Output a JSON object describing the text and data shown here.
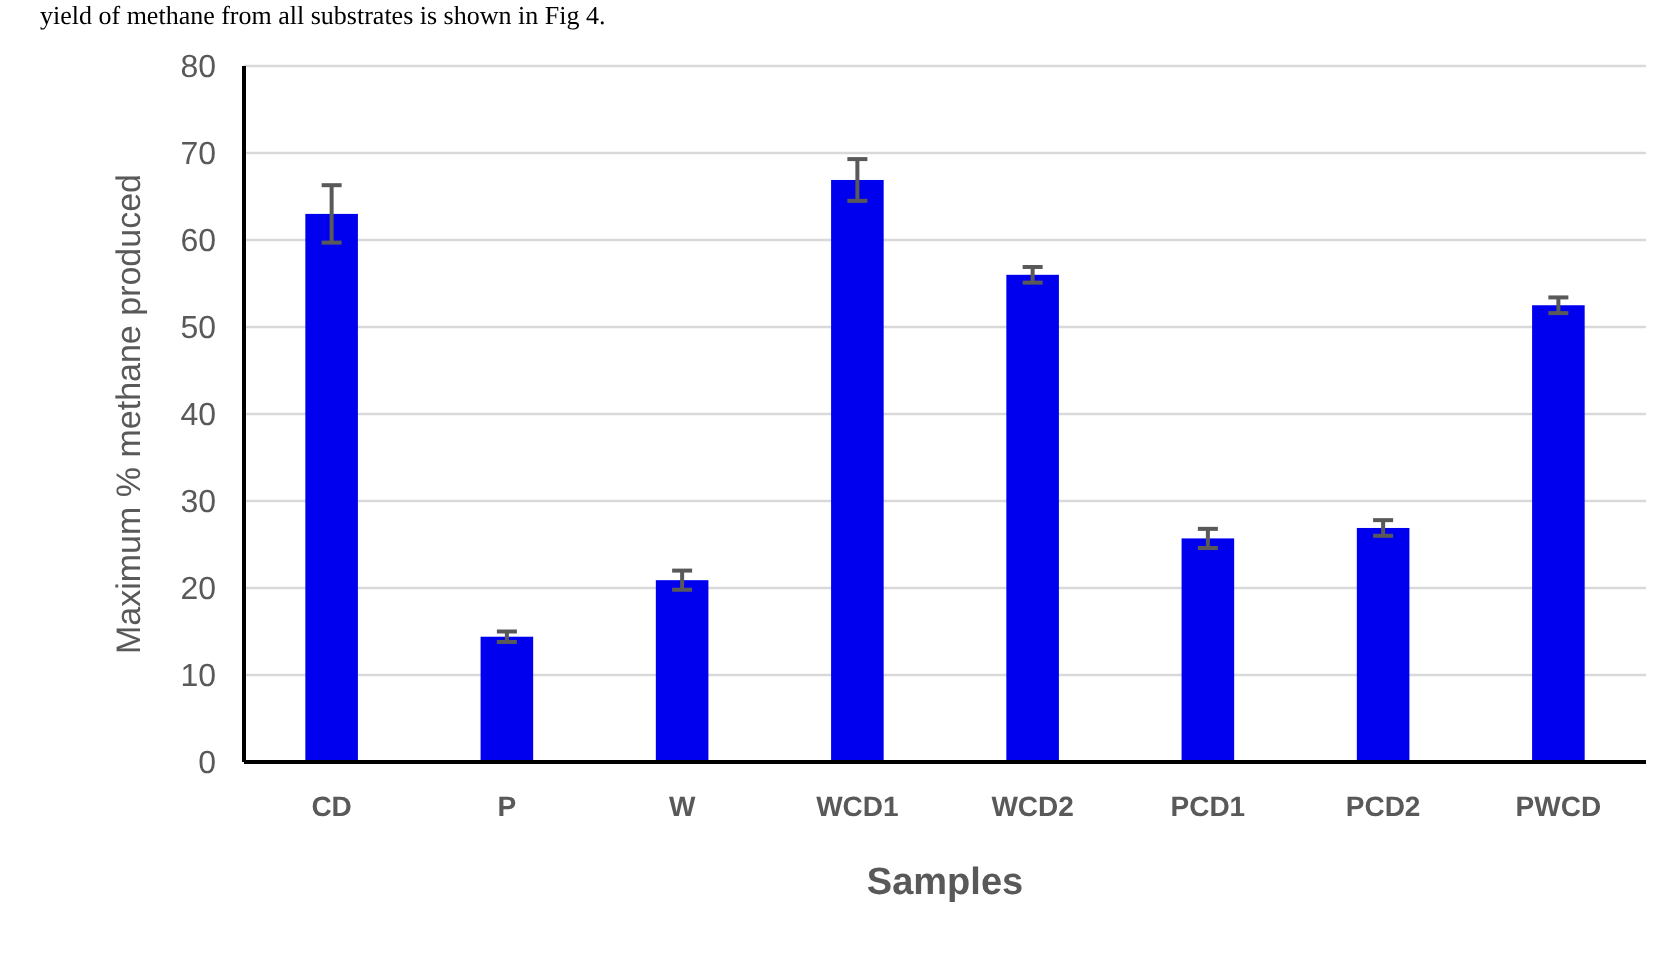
{
  "chart_data": {
    "type": "bar",
    "xlabel": "Samples",
    "ylabel": "Maximum % methane produced",
    "annotations": [
      "yield of methane from all substrates is shown in Fig 4."
    ],
    "categories": [
      "CD",
      "P",
      "W",
      "WCD1",
      "WCD2",
      "PCD1",
      "PCD2",
      "PWCD"
    ],
    "values": [
      63,
      14.4,
      20.9,
      66.9,
      56,
      25.7,
      26.9,
      52.5
    ],
    "errors": [
      3.3,
      0.6,
      1.1,
      2.4,
      0.9,
      1.1,
      0.9,
      0.9
    ],
    "color": "#0000ee",
    "ylim": [
      0,
      80
    ],
    "yticks": [
      0,
      10,
      20,
      30,
      40,
      50,
      60,
      70,
      80
    ],
    "grid": "y"
  }
}
